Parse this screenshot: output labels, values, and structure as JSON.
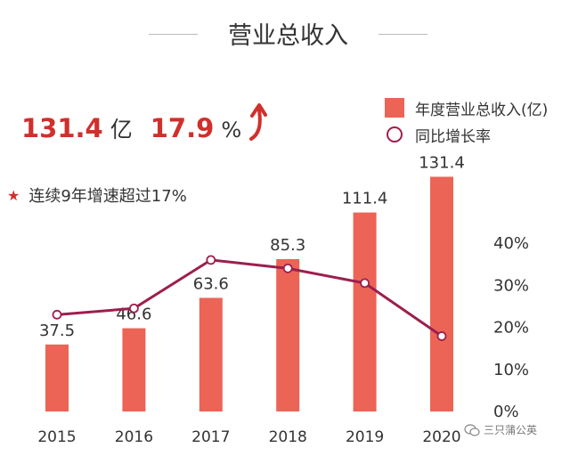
{
  "header": {
    "title": "营业总收入"
  },
  "kpi": {
    "revenue_value": "131.4",
    "revenue_unit": "亿",
    "growth_value": "17.9",
    "growth_unit": "%"
  },
  "note": {
    "text": "连续9年增速超过17%"
  },
  "watermark": {
    "text": "三只蒲公英"
  },
  "colors": {
    "bar": "#ec6456",
    "line": "#9c1f4e",
    "accent": "#d0302c"
  },
  "chart_data": {
    "type": "bar",
    "categories": [
      "2015",
      "2016",
      "2017",
      "2018",
      "2019",
      "2020"
    ],
    "series": [
      {
        "name": "年度营业总收入(亿)",
        "type": "bar",
        "axis": "left",
        "values": [
          37.5,
          46.6,
          63.6,
          85.3,
          111.4,
          131.4
        ]
      },
      {
        "name": "同比增长率",
        "type": "line",
        "axis": "right",
        "values": [
          23,
          24.5,
          36,
          34,
          30.5,
          17.9
        ]
      }
    ],
    "data_labels": [
      "37.5",
      "46.6",
      "63.6",
      "85.3",
      "111.4",
      "131.4"
    ],
    "right_axis": {
      "ticks": [
        "0%",
        "10%",
        "20%",
        "30%",
        "40%"
      ],
      "range": [
        0,
        40
      ]
    },
    "left_axis_range": [
      0,
      180
    ],
    "legend_position": "top-right",
    "grid": false
  }
}
